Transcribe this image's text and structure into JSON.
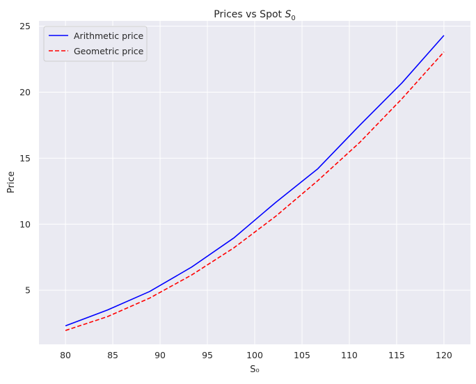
{
  "chart_data": {
    "type": "line",
    "title": "Prices vs Spot ",
    "title_math_base": "S",
    "title_math_sub": "0",
    "xlabel": "S₀",
    "ylabel": "Price",
    "xlim": [
      77.2,
      122.8
    ],
    "ylim": [
      0.9,
      25.4
    ],
    "xticks": [
      80,
      85,
      90,
      95,
      100,
      105,
      110,
      115,
      120
    ],
    "yticks": [
      5,
      10,
      15,
      20,
      25
    ],
    "grid": true,
    "legend_position": "top-left",
    "series": [
      {
        "name": "Arithmetic price",
        "color": "#0000ff",
        "style": "solid",
        "x": [
          80,
          84.44,
          88.89,
          93.33,
          97.78,
          102.22,
          106.67,
          111.11,
          115.56,
          120
        ],
        "y": [
          2.3,
          3.5,
          4.9,
          6.75,
          8.95,
          11.65,
          14.2,
          17.5,
          20.7,
          24.3
        ]
      },
      {
        "name": "Geometric price",
        "color": "#ff0000",
        "style": "dashed",
        "x": [
          80,
          84.44,
          88.89,
          93.33,
          97.78,
          102.22,
          106.67,
          111.11,
          115.56,
          120
        ],
        "y": [
          1.95,
          3.0,
          4.4,
          6.15,
          8.2,
          10.6,
          13.3,
          16.2,
          19.5,
          23.05
        ]
      }
    ]
  }
}
